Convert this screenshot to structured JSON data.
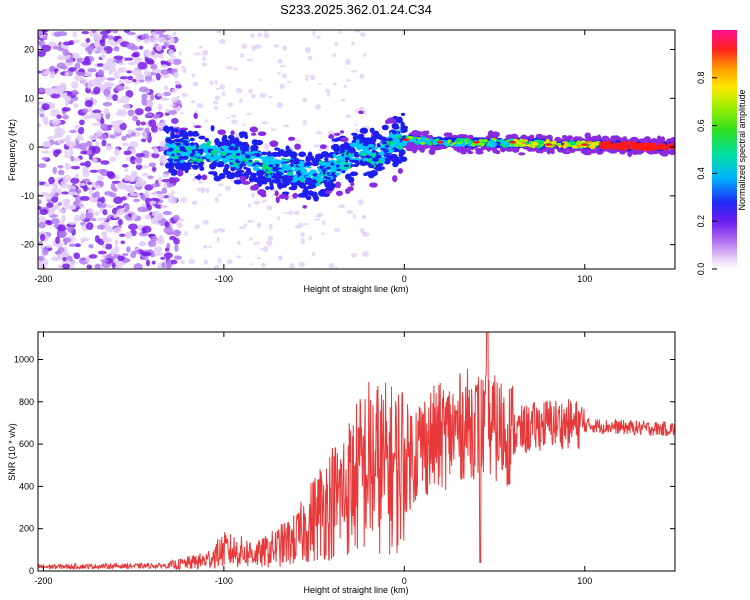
{
  "title": "S233.2025.362.01.24.C34",
  "spectrogram": {
    "type": "heatmap",
    "xlabel": "Height of straight line (km)",
    "ylabel": "Frequency (Hz)",
    "xlim": [
      -203,
      150
    ],
    "ylim": [
      -25,
      24
    ],
    "xticks": [
      -200,
      -100,
      0,
      100
    ],
    "yticks": [
      20,
      10,
      0,
      -10,
      -20
    ],
    "xticklabels": [
      "-200",
      "-100",
      "0",
      "100"
    ],
    "yticklabels": [
      "20",
      "10",
      "0",
      "-10",
      "-20"
    ],
    "colorbar": {
      "label": "Normalized spectral amplitude",
      "ticks": [
        0.0,
        0.2,
        0.4,
        0.6,
        0.8
      ],
      "ticklabels": [
        "0.0",
        "0.2",
        "0.4",
        "0.6",
        "0.8"
      ],
      "range": [
        0,
        1
      ]
    },
    "ridge": [
      {
        "x": -130,
        "y": -1
      },
      {
        "x": -110,
        "y": -1
      },
      {
        "x": -90,
        "y": -2
      },
      {
        "x": -75,
        "y": -4
      },
      {
        "x": -60,
        "y": -5
      },
      {
        "x": -50,
        "y": -6
      },
      {
        "x": -40,
        "y": -4
      },
      {
        "x": -30,
        "y": -2
      },
      {
        "x": -25,
        "y": 0
      },
      {
        "x": -18,
        "y": -2
      },
      {
        "x": -12,
        "y": -1
      },
      {
        "x": -5,
        "y": 1
      },
      {
        "x": 0,
        "y": 1.5
      },
      {
        "x": 20,
        "y": 1
      },
      {
        "x": 60,
        "y": 0.8
      },
      {
        "x": 100,
        "y": 0.5
      },
      {
        "x": 150,
        "y": 0
      }
    ],
    "noise_region_x": [
      -203,
      -130
    ]
  },
  "snr": {
    "type": "line",
    "xlabel": "Height of straight line (km)",
    "ylabel": "SNR (10 * v/v)",
    "xlim": [
      -203,
      150
    ],
    "ylim": [
      0,
      1130
    ],
    "xticks": [
      -200,
      -100,
      0,
      100
    ],
    "yticks": [
      0,
      200,
      400,
      600,
      800,
      1000
    ],
    "xticklabels": [
      "-200",
      "-100",
      "0",
      "100"
    ],
    "yticklabels": [
      "0",
      "200",
      "400",
      "600",
      "800",
      "1000"
    ],
    "color": "#e8393a",
    "envelope": [
      {
        "x": -203,
        "y": 20
      },
      {
        "x": -130,
        "y": 25
      },
      {
        "x": -110,
        "y": 50
      },
      {
        "x": -100,
        "y": 100
      },
      {
        "x": -80,
        "y": 80
      },
      {
        "x": -60,
        "y": 150
      },
      {
        "x": -45,
        "y": 300
      },
      {
        "x": -35,
        "y": 360
      },
      {
        "x": -20,
        "y": 500
      },
      {
        "x": -5,
        "y": 480
      },
      {
        "x": 10,
        "y": 600
      },
      {
        "x": 25,
        "y": 650
      },
      {
        "x": 35,
        "y": 700
      },
      {
        "x": 45,
        "y": 680
      },
      {
        "x": 60,
        "y": 650
      },
      {
        "x": 80,
        "y": 700
      },
      {
        "x": 100,
        "y": 690
      },
      {
        "x": 120,
        "y": 680
      },
      {
        "x": 150,
        "y": 670
      }
    ],
    "peak": {
      "x": 46,
      "y": 1130
    },
    "dip": {
      "x": 42,
      "y": 40
    }
  },
  "colors": {
    "colormap": [
      "#ffffff",
      "#d9b8f5",
      "#8a2be2",
      "#1e1ef0",
      "#00c8ff",
      "#00e070",
      "#7cfc00",
      "#ffe000",
      "#ff8c00",
      "#ff1a1a",
      "#ff1493"
    ]
  }
}
